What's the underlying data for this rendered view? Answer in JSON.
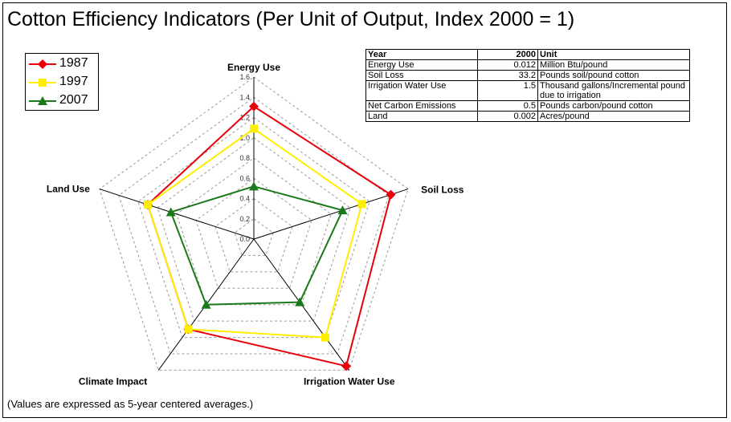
{
  "title": "Cotton Efficiency Indicators (Per Unit of Output, Index 2000 = 1)",
  "footnote": "(Values are expressed as 5-year centered averages.)",
  "colors": {
    "1987": "#e8000b",
    "1997": "#ffee00",
    "2007": "#1a7a1a"
  },
  "table": {
    "headers": [
      "Year",
      "2000",
      "Unit"
    ],
    "rows": [
      [
        "Energy Use",
        "0.012",
        "Million Btu/pound"
      ],
      [
        "Soil Loss",
        "33.2",
        "Pounds soil/pound cotton"
      ],
      [
        "Irrigation Water Use",
        "1.5",
        "Thousand gallons/Incremental pound due to irrigation"
      ],
      [
        "Net Carbon Emissions",
        "0.5",
        "Pounds carbon/pound cotton"
      ],
      [
        "Land",
        "0.002",
        "Acres/pound"
      ]
    ]
  },
  "chart_data": {
    "type": "radar",
    "title": "Cotton Efficiency Indicators (Per Unit of Output, Index 2000 = 1)",
    "axes": [
      "Energy Use",
      "Soil Loss",
      "Irrigation Water Use",
      "Climate Impact",
      "Land Use"
    ],
    "rlim": [
      0,
      1.6
    ],
    "ticks": [
      "0.0",
      "0.2",
      "0.4",
      "0.6",
      "0.8",
      "1.0",
      "1.2",
      "1.4",
      "1.6"
    ],
    "grid": true,
    "legend_position": "top-left",
    "series": [
      {
        "name": "1987",
        "color": "#e8000b",
        "marker": "diamond",
        "values": [
          1.31,
          1.42,
          1.55,
          1.1,
          1.1
        ]
      },
      {
        "name": "1997",
        "color": "#ffee00",
        "marker": "square",
        "values": [
          1.09,
          1.12,
          1.2,
          1.1,
          1.1
        ]
      },
      {
        "name": "2007",
        "color": "#1a7a1a",
        "marker": "triangle",
        "values": [
          0.52,
          0.92,
          0.77,
          0.8,
          0.86
        ]
      }
    ]
  }
}
